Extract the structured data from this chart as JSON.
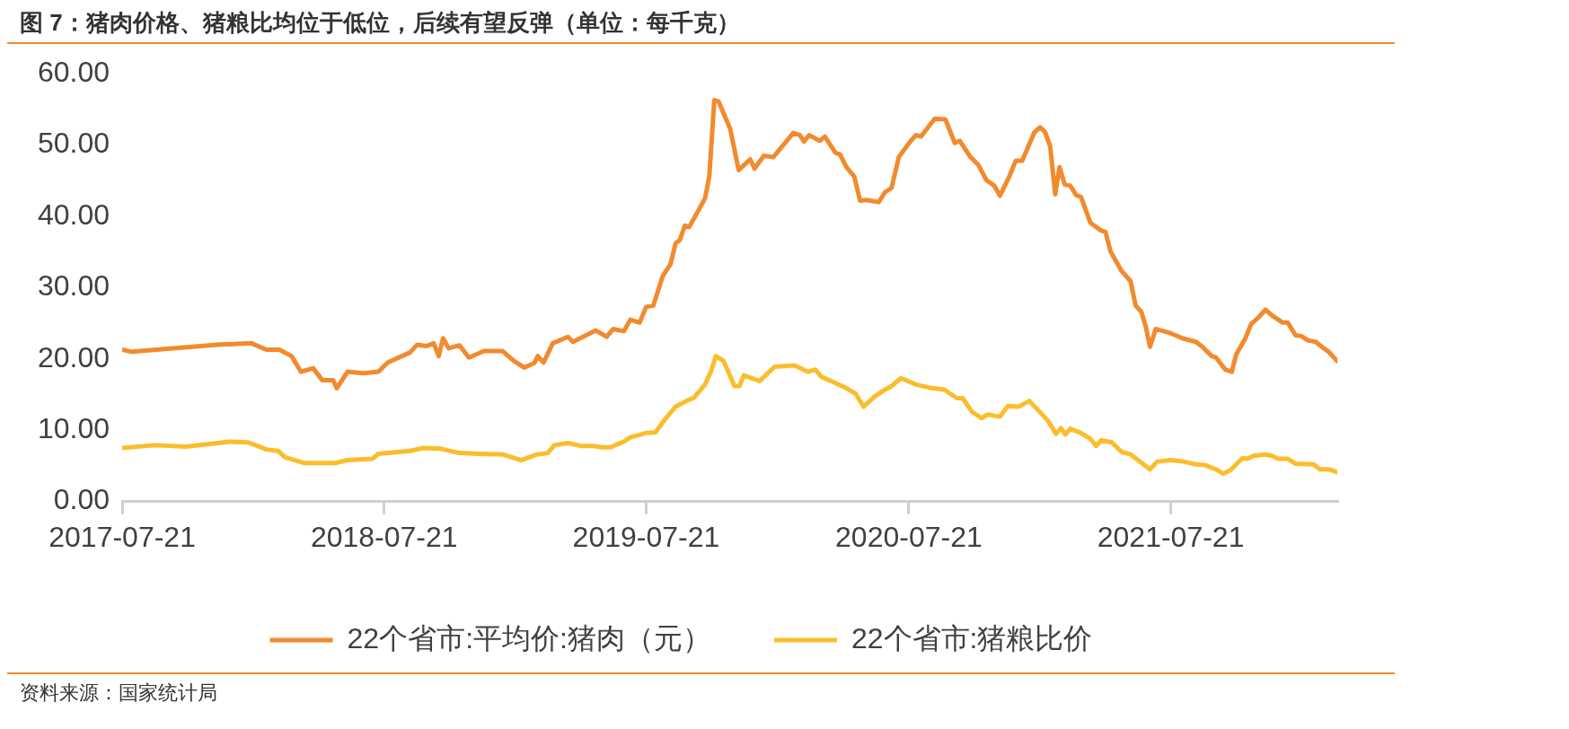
{
  "chart_data": {
    "type": "line",
    "title": "图 7：猪肉价格、猪粮比均位于低位，后续有望反弹（单位：每千克）",
    "annotations": [
      "资料来源：国家统计局"
    ],
    "xlim": [
      "2017-07-21",
      "2022-03-10"
    ],
    "xticks": [
      "2017-07-21",
      "2018-07-21",
      "2019-07-21",
      "2020-07-21",
      "2021-07-21"
    ],
    "ylim": [
      0,
      60
    ],
    "yticks": [
      {
        "value": 0,
        "label": "0.00"
      },
      {
        "value": 10,
        "label": "10.00"
      },
      {
        "value": 20,
        "label": "20.00"
      },
      {
        "value": 30,
        "label": "30.00"
      },
      {
        "value": 40,
        "label": "40.00"
      },
      {
        "value": 50,
        "label": "50.00"
      },
      {
        "value": 60,
        "label": "60.00"
      }
    ],
    "grid": false,
    "legend": "bottom",
    "marker": "none",
    "line_style": "solid",
    "series": [
      {
        "name": "22个省市:平均价:猪肉（元）",
        "color": "#f28a2e",
        "x": [
          "2017-07-21",
          "2017-08-03",
          "2017-11-30",
          "2018-01-17",
          "2018-02-07",
          "2018-02-25",
          "2018-03-14",
          "2018-03-27",
          "2018-04-13",
          "2018-04-26",
          "2018-05-11",
          "2018-05-16",
          "2018-05-31",
          "2018-06-22",
          "2018-07-13",
          "2018-07-26",
          "2018-08-26",
          "2018-09-05",
          "2018-09-18",
          "2018-09-28",
          "2018-10-05",
          "2018-10-11",
          "2018-10-19",
          "2018-11-03",
          "2018-11-16",
          "2018-12-07",
          "2019-01-02",
          "2019-01-18",
          "2019-02-01",
          "2019-02-15",
          "2019-02-20",
          "2019-02-28",
          "2019-03-13",
          "2019-04-03",
          "2019-04-10",
          "2019-05-12",
          "2019-05-27",
          "2019-06-05",
          "2019-06-20",
          "2019-06-29",
          "2019-07-12",
          "2019-07-21",
          "2019-07-31",
          "2019-08-13",
          "2019-08-24",
          "2019-08-31",
          "2019-09-06",
          "2019-09-13",
          "2019-09-19",
          "2019-10-11",
          "2019-10-17",
          "2019-10-24",
          "2019-10-30",
          "2019-11-15",
          "2019-11-27",
          "2019-12-13",
          "2019-12-19",
          "2020-01-01",
          "2020-01-14",
          "2020-02-11",
          "2020-02-20",
          "2020-02-26",
          "2020-03-04",
          "2020-03-19",
          "2020-03-26",
          "2020-04-10",
          "2020-04-16",
          "2020-04-25",
          "2020-05-06",
          "2020-05-14",
          "2020-05-23",
          "2020-06-09",
          "2020-06-18",
          "2020-06-27",
          "2020-07-07",
          "2020-07-23",
          "2020-07-31",
          "2020-08-07",
          "2020-08-26",
          "2020-09-10",
          "2020-09-23",
          "2020-09-30",
          "2020-10-15",
          "2020-10-26",
          "2020-11-06",
          "2020-11-17",
          "2020-11-25",
          "2020-12-08",
          "2020-12-17",
          "2020-12-26",
          "2021-01-12",
          "2021-01-20",
          "2021-01-27",
          "2021-02-03",
          "2021-02-10",
          "2021-02-16",
          "2021-02-23",
          "2021-03-03",
          "2021-03-11",
          "2021-03-18",
          "2021-03-31",
          "2021-04-15",
          "2021-04-21",
          "2021-04-28",
          "2021-05-13",
          "2021-05-26",
          "2021-06-02",
          "2021-06-10",
          "2021-06-16",
          "2021-06-22",
          "2021-06-30",
          "2021-07-21",
          "2021-08-06",
          "2021-08-25",
          "2021-09-03",
          "2021-09-16",
          "2021-09-22",
          "2021-10-05",
          "2021-10-14",
          "2021-10-20",
          "2021-11-02",
          "2021-11-10",
          "2021-11-20",
          "2021-11-30",
          "2021-12-09",
          "2021-12-24",
          "2021-12-31",
          "2022-01-11",
          "2022-01-19",
          "2022-01-28",
          "2022-02-08",
          "2022-02-19",
          "2022-02-25",
          "2022-03-10"
        ],
        "values": [
          21.3,
          21.0,
          22.0,
          22.2,
          21.3,
          21.3,
          20.4,
          18.2,
          18.7,
          17.0,
          17.0,
          15.9,
          18.2,
          18.0,
          18.2,
          19.5,
          20.9,
          22.0,
          21.8,
          22.2,
          20.4,
          22.9,
          21.5,
          21.9,
          20.2,
          21.1,
          21.1,
          19.7,
          18.8,
          19.4,
          20.4,
          19.5,
          22.2,
          23.1,
          22.4,
          24.0,
          23.1,
          24.2,
          23.9,
          25.5,
          25.1,
          27.3,
          27.5,
          31.6,
          33.3,
          36.2,
          36.7,
          38.7,
          38.5,
          42.5,
          45.6,
          56.3,
          56.1,
          52.3,
          46.5,
          48.0,
          46.7,
          48.5,
          48.3,
          51.7,
          51.4,
          50.5,
          51.4,
          50.6,
          51.2,
          48.9,
          48.7,
          46.9,
          45.6,
          42.2,
          42.3,
          42.0,
          43.4,
          44.0,
          48.3,
          50.5,
          51.4,
          51.2,
          53.7,
          53.6,
          50.3,
          50.6,
          48.3,
          47.2,
          45.1,
          44.3,
          42.9,
          45.6,
          47.8,
          47.8,
          51.8,
          52.5,
          51.8,
          49.8,
          43.1,
          46.9,
          44.5,
          44.3,
          43.0,
          42.7,
          39.1,
          38.0,
          37.8,
          35.1,
          32.4,
          30.9,
          27.5,
          26.6,
          24.6,
          21.7,
          24.2,
          23.6,
          22.9,
          22.4,
          21.7,
          20.4,
          20.2,
          18.5,
          18.2,
          20.6,
          22.9,
          24.9,
          25.8,
          26.9,
          26.1,
          25.1,
          25.1,
          23.3,
          23.2,
          22.6,
          22.4,
          21.5,
          21.1,
          19.7
        ]
      },
      {
        "name": "22个省市:猪粮比价",
        "color": "#fbbd2c",
        "x": [
          "2017-07-21",
          "2017-09-04",
          "2017-10-18",
          "2017-12-17",
          "2018-01-12",
          "2018-02-07",
          "2018-02-23",
          "2018-03-05",
          "2018-03-31",
          "2018-05-14",
          "2018-05-31",
          "2018-07-05",
          "2018-07-13",
          "2018-08-26",
          "2018-09-14",
          "2018-10-08",
          "2018-11-03",
          "2018-11-29",
          "2019-01-02",
          "2019-01-28",
          "2019-02-19",
          "2019-03-06",
          "2019-03-15",
          "2019-04-03",
          "2019-04-21",
          "2019-05-08",
          "2019-05-21",
          "2019-06-01",
          "2019-06-20",
          "2019-06-29",
          "2019-07-21",
          "2019-08-03",
          "2019-08-16",
          "2019-08-31",
          "2019-09-15",
          "2019-09-26",
          "2019-10-11",
          "2019-10-20",
          "2019-10-26",
          "2019-11-06",
          "2019-11-21",
          "2019-11-28",
          "2019-12-04",
          "2019-12-26",
          "2020-01-16",
          "2020-02-13",
          "2020-03-02",
          "2020-03-13",
          "2020-03-21",
          "2020-04-10",
          "2020-04-25",
          "2020-05-08",
          "2020-05-19",
          "2020-06-03",
          "2020-06-18",
          "2020-06-27",
          "2020-07-10",
          "2020-07-31",
          "2020-08-22",
          "2020-09-08",
          "2020-09-26",
          "2020-10-04",
          "2020-10-17",
          "2020-10-30",
          "2020-11-08",
          "2020-11-25",
          "2020-12-06",
          "2020-12-21",
          "2021-01-05",
          "2021-01-21",
          "2021-01-31",
          "2021-02-11",
          "2021-02-18",
          "2021-02-24",
          "2021-03-03",
          "2021-03-16",
          "2021-03-31",
          "2021-04-08",
          "2021-04-15",
          "2021-04-30",
          "2021-05-13",
          "2021-05-26",
          "2021-06-12",
          "2021-06-22",
          "2021-07-02",
          "2021-07-21",
          "2021-08-08",
          "2021-08-25",
          "2021-09-07",
          "2021-09-22",
          "2021-10-02",
          "2021-10-12",
          "2021-10-29",
          "2021-11-05",
          "2021-11-13",
          "2021-11-30",
          "2021-12-09",
          "2021-12-18",
          "2021-12-31",
          "2022-01-11",
          "2022-02-05",
          "2022-02-14",
          "2022-02-27",
          "2022-03-10"
        ],
        "values": [
          7.5,
          7.9,
          7.7,
          8.4,
          8.3,
          7.3,
          7.1,
          6.2,
          5.4,
          5.4,
          5.8,
          6.0,
          6.7,
          7.1,
          7.5,
          7.4,
          6.8,
          6.7,
          6.6,
          5.8,
          6.6,
          6.8,
          7.9,
          8.2,
          7.8,
          7.8,
          7.6,
          7.6,
          8.4,
          9.0,
          9.6,
          9.7,
          11.5,
          13.3,
          14.1,
          14.6,
          16.4,
          18.4,
          20.4,
          19.7,
          16.2,
          16.2,
          17.7,
          16.9,
          18.9,
          19.1,
          18.2,
          18.5,
          17.5,
          16.6,
          15.9,
          15.1,
          13.3,
          14.7,
          15.7,
          16.2,
          17.3,
          16.4,
          15.9,
          15.7,
          14.5,
          14.5,
          12.6,
          11.7,
          12.2,
          11.9,
          13.4,
          13.3,
          14.1,
          12.4,
          11.3,
          9.5,
          10.3,
          9.4,
          10.2,
          9.7,
          8.8,
          7.8,
          8.6,
          8.3,
          7.0,
          6.6,
          5.3,
          4.5,
          5.6,
          5.8,
          5.6,
          5.2,
          5.1,
          4.5,
          3.9,
          4.4,
          6.1,
          6.0,
          6.4,
          6.6,
          6.4,
          6.0,
          6.0,
          5.3,
          5.2,
          4.5,
          4.5,
          4.1
        ]
      }
    ]
  }
}
